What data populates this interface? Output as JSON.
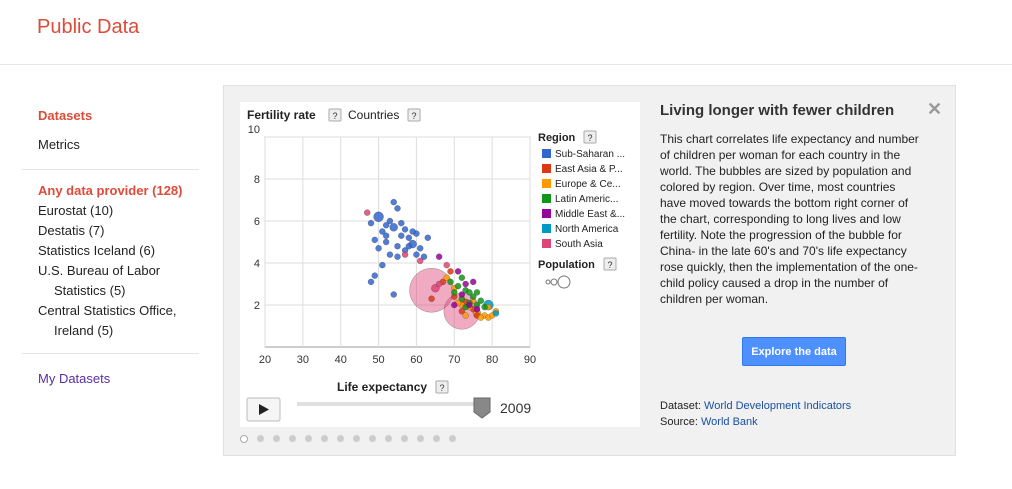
{
  "header": {
    "brand": "Public Data"
  },
  "sidebar": {
    "datasets": "Datasets",
    "metrics": "Metrics",
    "providers_title": "Any data provider (128)",
    "providers": [
      {
        "line1": "Eurostat (10)",
        "line2": ""
      },
      {
        "line1": "Destatis (7)",
        "line2": ""
      },
      {
        "line1": "Statistics Iceland (6)",
        "line2": ""
      },
      {
        "line1": "U.S. Bureau of Labor",
        "line2": "Statistics (5)"
      },
      {
        "line1": "Central Statistics Office,",
        "line2": "Ireland (5)"
      }
    ],
    "my_datasets": "My Datasets"
  },
  "chart_ui": {
    "y_metric": "Fertility rate",
    "help_mark": "?",
    "color_by": "Countries",
    "region_title": "Region",
    "population_title": "Population",
    "x_metric": "Life expectancy",
    "year": "2009"
  },
  "chart_data": {
    "type": "scatter",
    "title": "Fertility rate",
    "xlabel": "Life expectancy",
    "ylabel": "Fertility rate",
    "xlim": [
      20,
      90
    ],
    "ylim": [
      0,
      10
    ],
    "xticks": [
      20,
      30,
      40,
      50,
      60,
      70,
      80,
      90
    ],
    "yticks": [
      2,
      4,
      6,
      8,
      10
    ],
    "grid": true,
    "legend_position": "right",
    "series": [
      {
        "name": "Sub-Saharan ...",
        "color": "#3366cc",
        "points": [
          [
            48,
            5.9
          ],
          [
            49,
            5.1
          ],
          [
            50,
            6.2
          ],
          [
            51,
            5.5
          ],
          [
            52,
            5.3
          ],
          [
            53,
            6.0
          ],
          [
            54,
            5.7
          ],
          [
            55,
            6.6
          ],
          [
            55,
            4.8
          ],
          [
            56,
            5.9
          ],
          [
            57,
            5.6
          ],
          [
            58,
            5.2
          ],
          [
            59,
            4.9
          ],
          [
            60,
            5.4
          ],
          [
            61,
            4.7
          ],
          [
            53,
            4.4
          ],
          [
            50,
            4.7
          ],
          [
            54,
            6.9
          ],
          [
            52,
            5.0
          ],
          [
            49,
            3.4
          ],
          [
            48,
            3.1
          ],
          [
            51,
            3.9
          ],
          [
            57,
            4.6
          ],
          [
            59,
            5.5
          ],
          [
            62,
            4.3
          ],
          [
            63,
            5.2
          ],
          [
            54,
            2.5
          ],
          [
            60,
            4.4
          ],
          [
            58,
            4.8
          ],
          [
            52,
            5.8
          ],
          [
            56,
            5.3
          ],
          [
            55,
            4.3
          ]
        ],
        "sizes": [
          3,
          3,
          5,
          3,
          3,
          3,
          4,
          3,
          3,
          3,
          3,
          3,
          4,
          3,
          3,
          3,
          3,
          3,
          3,
          3,
          3,
          3,
          3,
          3,
          3,
          3,
          3,
          3,
          3,
          3,
          3,
          3
        ]
      },
      {
        "name": "East Asia & P...",
        "color": "#dc3912",
        "points": [
          [
            67,
            3.1
          ],
          [
            70,
            2.4
          ],
          [
            73,
            2.1
          ],
          [
            75,
            1.8
          ],
          [
            72,
            1.7
          ],
          [
            64,
            2.3
          ],
          [
            69,
            3.6
          ],
          [
            76,
            1.5
          ]
        ],
        "sizes": [
          3,
          3,
          4,
          3,
          3,
          3,
          3,
          3
        ]
      },
      {
        "name": "Europe & Ce...",
        "color": "#ff9900",
        "points": [
          [
            70,
            2.8
          ],
          [
            74,
            1.9
          ],
          [
            76,
            1.6
          ],
          [
            78,
            1.5
          ],
          [
            79,
            1.4
          ],
          [
            80,
            1.5
          ],
          [
            81,
            1.7
          ],
          [
            73,
            1.5
          ],
          [
            72,
            2.0
          ],
          [
            68,
            3.3
          ],
          [
            77,
            1.4
          ],
          [
            75,
            2.2
          ],
          [
            71,
            2.1
          ],
          [
            79,
            1.9
          ]
        ],
        "sizes": [
          3,
          3,
          4,
          3,
          3,
          3,
          3,
          3,
          3,
          3,
          3,
          3,
          3,
          3
        ]
      },
      {
        "name": "Latin Americ...",
        "color": "#109618",
        "points": [
          [
            70,
            2.6
          ],
          [
            72,
            2.3
          ],
          [
            73,
            2.7
          ],
          [
            74,
            2.1
          ],
          [
            75,
            2.4
          ],
          [
            76,
            2.0
          ],
          [
            71,
            2.9
          ],
          [
            77,
            2.2
          ],
          [
            69,
            3.1
          ],
          [
            72,
            3.3
          ],
          [
            74,
            2.6
          ],
          [
            78,
            1.9
          ],
          [
            73,
            1.9
          ],
          [
            76,
            2.6
          ]
        ],
        "sizes": [
          3,
          3,
          3,
          3,
          3,
          3,
          3,
          3,
          3,
          3,
          3,
          3,
          3,
          3
        ]
      },
      {
        "name": "Middle East &...",
        "color": "#990099",
        "points": [
          [
            73,
            3.0
          ],
          [
            71,
            3.6
          ],
          [
            72,
            2.5
          ],
          [
            74,
            2.0
          ],
          [
            66,
            4.3
          ],
          [
            75,
            3.1
          ],
          [
            76,
            1.8
          ],
          [
            70,
            2.0
          ]
        ],
        "sizes": [
          3,
          3,
          3,
          3,
          3,
          3,
          3,
          3
        ]
      },
      {
        "name": "North America",
        "color": "#0099c6",
        "points": [
          [
            79,
            2.0
          ],
          [
            81,
            1.6
          ]
        ],
        "sizes": [
          5,
          3
        ]
      },
      {
        "name": "South Asia",
        "color": "#dd4477",
        "points": [
          [
            64,
            2.7
          ],
          [
            72,
            1.7
          ],
          [
            65,
            2.8
          ],
          [
            66,
            3.0
          ],
          [
            61,
            4.1
          ],
          [
            47,
            6.4
          ],
          [
            68,
            3.9
          ],
          [
            57,
            4.4
          ]
        ],
        "sizes": [
          22,
          18,
          4,
          3,
          3,
          3,
          3,
          3
        ]
      }
    ]
  },
  "description": {
    "title": "Living longer with fewer children",
    "body": "This chart correlates life expectancy and number of children per woman for each country in the world. The bubbles are sized by population and colored by region. Over time, most countries have moved towards the bottom right corner of the chart, corresponding to long lives and low fertility. Note the progression of the bubble for China- in the late 60's and 70's life expectancy rose quickly, then the implementation of the one-child policy caused a drop in the number of children per woman.",
    "explore_label": "Explore the data",
    "dataset_label": "Dataset:",
    "dataset_link": "World Development Indicators",
    "source_label": "Source:",
    "source_link": "World Bank",
    "close_glyph": "✕"
  },
  "carousel": {
    "count": 14,
    "active": 0
  },
  "playback": {
    "slider_fraction": 1.0
  }
}
